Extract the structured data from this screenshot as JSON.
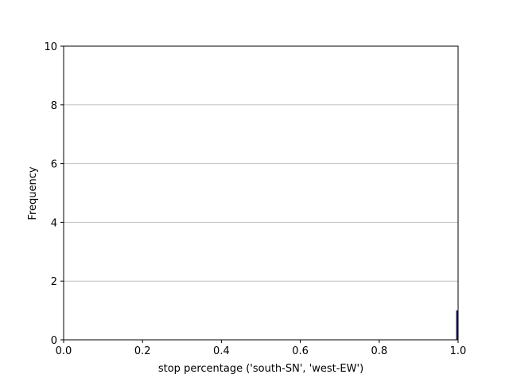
{
  "chart_data": {
    "type": "bar",
    "title": "",
    "xlabel": "stop percentage ('south-SN', 'west-EW')",
    "ylabel": "Frequency",
    "xlim": [
      0.0,
      1.0
    ],
    "ylim": [
      0,
      10
    ],
    "x_ticks": [
      "0.0",
      "0.2",
      "0.4",
      "0.6",
      "0.8",
      "1.0"
    ],
    "y_ticks": [
      "0",
      "2",
      "4",
      "6",
      "8",
      "10"
    ],
    "grid": "horizontal",
    "bars": [
      {
        "x_start": 0.995,
        "x_end": 1.0,
        "value": 1
      }
    ],
    "colors": {
      "bar": "#1f1f5c",
      "grid": "#c0c0c0",
      "axis": "#000000"
    }
  }
}
